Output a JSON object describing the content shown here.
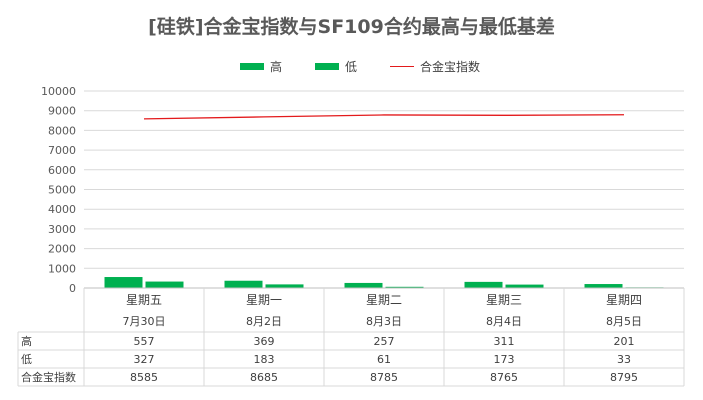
{
  "chart_data": {
    "type": "bar",
    "title": "[硅铁]合金宝指数与SF109合约最高与最低基差",
    "categories": [
      "星期五",
      "星期一",
      "星期二",
      "星期三",
      "星期四"
    ],
    "dates": [
      "7月30日",
      "8月2日",
      "8月3日",
      "8月4日",
      "8月5日"
    ],
    "series": [
      {
        "name": "高",
        "kind": "bar",
        "color": "#00B050",
        "values": [
          557,
          369,
          257,
          311,
          201
        ]
      },
      {
        "name": "低",
        "kind": "bar",
        "color": "#00B050",
        "values": [
          327,
          183,
          61,
          173,
          33
        ]
      },
      {
        "name": "合金宝指数",
        "kind": "line",
        "color": "#E31A1C",
        "values": [
          8585,
          8685,
          8785,
          8765,
          8795
        ]
      }
    ],
    "ylim": [
      0,
      10000
    ],
    "yticks": [
      0,
      1000,
      2000,
      3000,
      4000,
      5000,
      6000,
      7000,
      8000,
      9000,
      10000
    ],
    "grid": true,
    "legend_position": "top",
    "data_table": true
  }
}
